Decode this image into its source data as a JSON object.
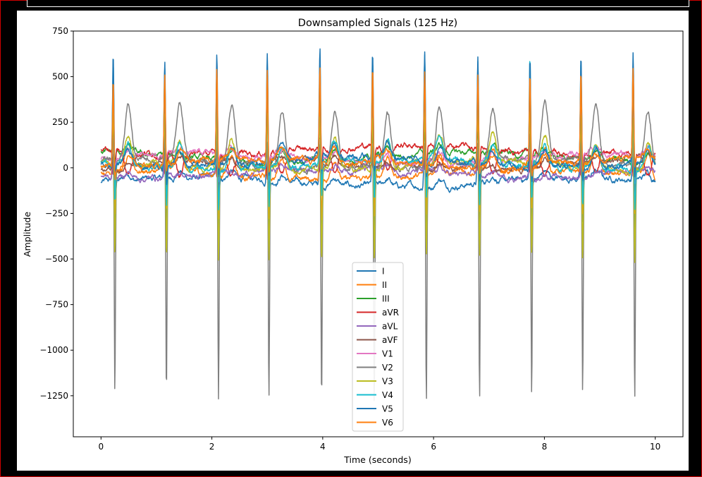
{
  "chart_data": {
    "type": "line",
    "title": "Downsampled Signals (125 Hz)",
    "xlabel": "Time (seconds)",
    "ylabel": "Amplitude",
    "xlim": [
      -0.5,
      10.5
    ],
    "ylim": [
      -1475,
      750
    ],
    "xticks": [
      0,
      2,
      4,
      6,
      8,
      10
    ],
    "yticks": [
      750,
      500,
      250,
      0,
      -250,
      -500,
      -750,
      -1000,
      -1250
    ],
    "grid": false,
    "legend_position": "lower center",
    "sampling_rate_hz": 125,
    "duration_s": 10,
    "beat_times_s": [
      0.22,
      1.15,
      2.09,
      3.0,
      3.95,
      4.9,
      5.84,
      6.8,
      7.74,
      8.66,
      9.6
    ],
    "series": [
      {
        "name": "I",
        "color": "#1f77b4",
        "baseline": -80,
        "r_peak": 560,
        "s_depth": -300,
        "t_wave": 40
      },
      {
        "name": "II",
        "color": "#ff7f0e",
        "baseline": -40,
        "r_peak": 520,
        "s_depth": -250,
        "t_wave": 120
      },
      {
        "name": "III",
        "color": "#2ca02c",
        "baseline": 60,
        "r_peak": 120,
        "s_depth": -80,
        "t_wave": 40
      },
      {
        "name": "aVR",
        "color": "#d62728",
        "baseline": 100,
        "r_peak": -120,
        "s_depth": -200,
        "t_wave": -120
      },
      {
        "name": "aVL",
        "color": "#9467bd",
        "baseline": -30,
        "r_peak": 140,
        "s_depth": -60,
        "t_wave": 30
      },
      {
        "name": "aVF",
        "color": "#8c564b",
        "baseline": 20,
        "r_peak": 100,
        "s_depth": -60,
        "t_wave": 30
      },
      {
        "name": "V1",
        "color": "#e377c2",
        "baseline": 50,
        "r_peak": 90,
        "s_depth": -40,
        "t_wave": 40
      },
      {
        "name": "V2",
        "color": "#7f7f7f",
        "baseline": 20,
        "r_peak": 150,
        "s_depth": -1290,
        "t_wave": 300
      },
      {
        "name": "V3",
        "color": "#bcbd22",
        "baseline": 10,
        "r_peak": 300,
        "s_depth": -520,
        "t_wave": 150
      },
      {
        "name": "V4",
        "color": "#17becf",
        "baseline": 20,
        "r_peak": 580,
        "s_depth": -230,
        "t_wave": 120
      },
      {
        "name": "V5",
        "color": "#1f77b4",
        "baseline": 30,
        "r_peak": 600,
        "s_depth": -100,
        "t_wave": 90
      },
      {
        "name": "V6",
        "color": "#ff7f0e",
        "baseline": 30,
        "r_peak": 500,
        "s_depth": -60,
        "t_wave": 60
      }
    ]
  }
}
